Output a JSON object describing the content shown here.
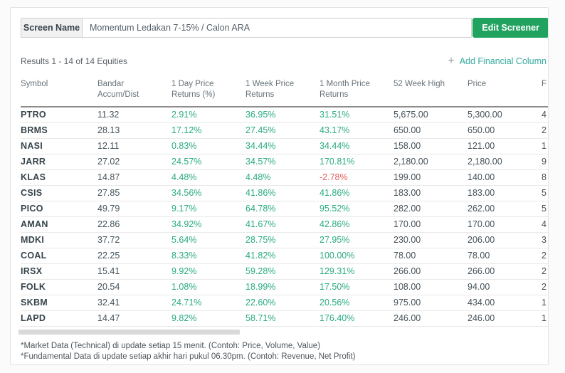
{
  "screen_name": {
    "label": "Screen Name",
    "value": "Momentum Ledakan 7-15% / Calon ARA"
  },
  "edit_button_label": "Edit Screener",
  "results_text": "Results 1 - 14 of 14 Equities",
  "add_column": {
    "plus": "+",
    "label": "Add Financial Column"
  },
  "colors": {
    "positive_green": "#2baa84",
    "negative_red": "#e15f5f",
    "button_green": "#21a35f",
    "link_teal": "#35ab9e"
  },
  "table": {
    "columns": [
      {
        "key": "symbol",
        "label": "Symbol",
        "type": "sym"
      },
      {
        "key": "bandar-accum-dist",
        "label": "Bandar Accum/Dist",
        "type": "num"
      },
      {
        "key": "1-day-price-returns",
        "label": "1 Day Price Returns (%)",
        "type": "pct"
      },
      {
        "key": "1-week-price-returns",
        "label": "1 Week Price Returns",
        "type": "pct"
      },
      {
        "key": "1-month-price-returns",
        "label": "1 Month Price Returns",
        "type": "pct"
      },
      {
        "key": "52-week-high",
        "label": "52 Week High",
        "type": "num"
      },
      {
        "key": "price",
        "label": "Price",
        "type": "num"
      },
      {
        "key": "f",
        "label": "F",
        "type": "num"
      }
    ],
    "rows": [
      [
        "PTRO",
        "11.32",
        "2.91%",
        "36.95%",
        "31.51%",
        "5,675.00",
        "5,300.00",
        "4"
      ],
      [
        "BRMS",
        "28.13",
        "17.12%",
        "27.45%",
        "43.17%",
        "650.00",
        "650.00",
        "2"
      ],
      [
        "NASI",
        "12.11",
        "0.83%",
        "34.44%",
        "34.44%",
        "158.00",
        "121.00",
        "1"
      ],
      [
        "JARR",
        "27.02",
        "24.57%",
        "34.57%",
        "170.81%",
        "2,180.00",
        "2,180.00",
        "9"
      ],
      [
        "KLAS",
        "14.87",
        "4.48%",
        "4.48%",
        "-2.78%",
        "199.00",
        "140.00",
        "8"
      ],
      [
        "CSIS",
        "27.85",
        "34.56%",
        "41.86%",
        "41.86%",
        "183.00",
        "183.00",
        "5"
      ],
      [
        "PICO",
        "49.79",
        "9.17%",
        "64.78%",
        "95.52%",
        "282.00",
        "262.00",
        "5"
      ],
      [
        "AMAN",
        "22.86",
        "34.92%",
        "41.67%",
        "42.86%",
        "170.00",
        "170.00",
        "4"
      ],
      [
        "MDKI",
        "37.72",
        "5.64%",
        "28.75%",
        "27.95%",
        "230.00",
        "206.00",
        "3"
      ],
      [
        "COAL",
        "22.25",
        "8.33%",
        "41.82%",
        "100.00%",
        "78.00",
        "78.00",
        "2"
      ],
      [
        "IRSX",
        "15.41",
        "9.92%",
        "59.28%",
        "129.31%",
        "266.00",
        "266.00",
        "2"
      ],
      [
        "FOLK",
        "20.54",
        "1.08%",
        "18.99%",
        "17.50%",
        "108.00",
        "94.00",
        "2"
      ],
      [
        "SKBM",
        "32.41",
        "24.71%",
        "22.60%",
        "20.56%",
        "975.00",
        "434.00",
        "1"
      ],
      [
        "LAPD",
        "14.47",
        "9.82%",
        "58.71%",
        "176.40%",
        "246.00",
        "246.00",
        "1"
      ]
    ]
  },
  "footnotes": [
    "*Market Data (Technical) di update setiap 15 menit. (Contoh: Price, Volume, Value)",
    "*Fundamental Data di update setiap akhir hari pukul 06.30pm. (Contoh: Revenue, Net Profit)"
  ]
}
